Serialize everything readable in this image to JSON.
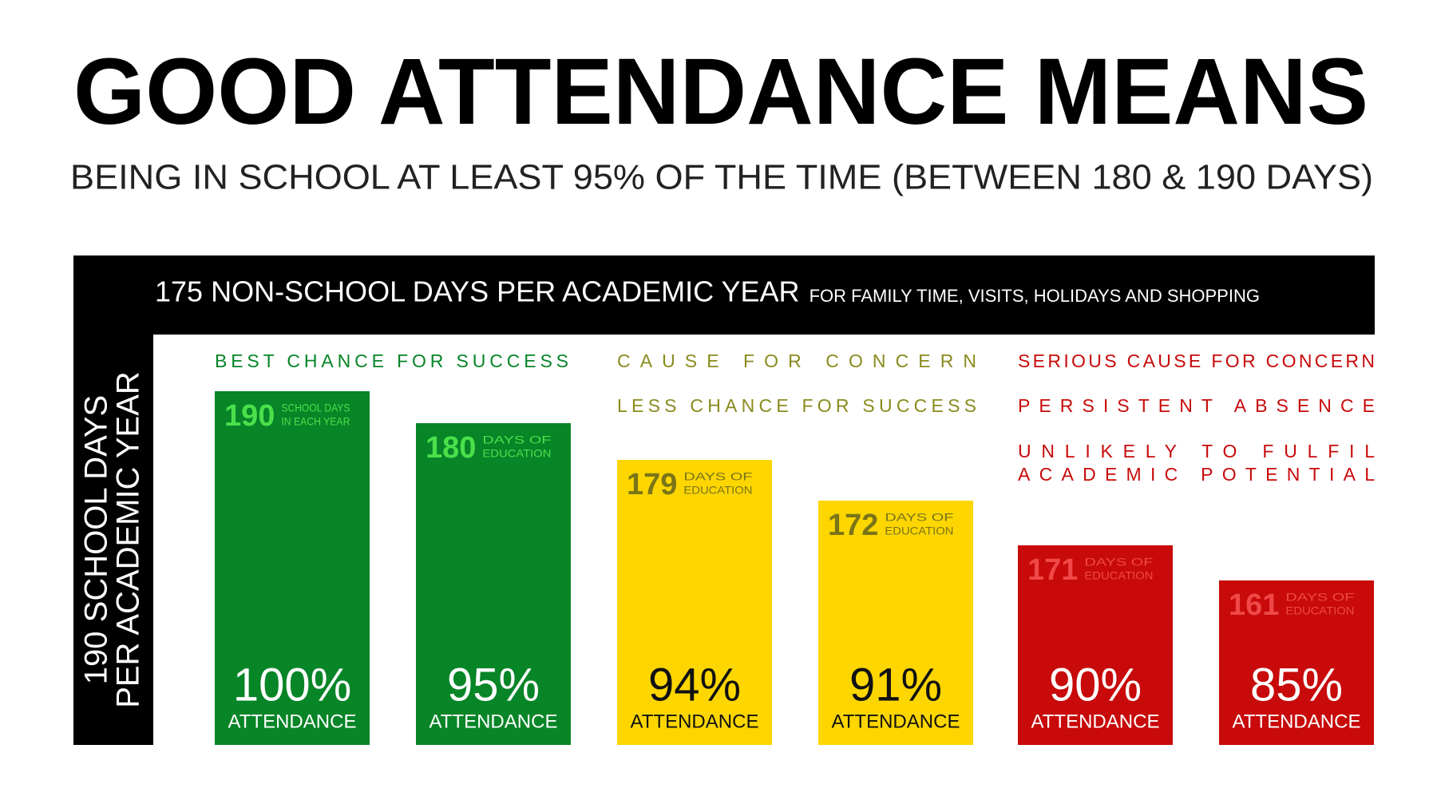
{
  "header": {
    "title": "GOOD ATTENDANCE MEANS",
    "subtitle": "BEING IN SCHOOL AT LEAST 95% OF THE TIME (BETWEEN 180 & 190 DAYS)"
  },
  "frame": {
    "top_main": "175 NON-SCHOOL DAYS PER ACADEMIC YEAR",
    "top_note": "FOR FAMILY TIME, VISITS, HOLIDAYS AND SHOPPING",
    "side": [
      "190 SCHOOL DAYS",
      "PER ACADEMIC YEAR"
    ]
  },
  "groups": [
    {
      "labels": [
        "BEST CHANCE FOR SUCCESS"
      ],
      "color": "#078527",
      "label_color": "#078527",
      "days_color": "#4be04b",
      "percent_color": "#ffffff",
      "bars": [
        {
          "days": 190,
          "note": [
            "SCHOOL DAYS",
            "IN EACH YEAR"
          ],
          "percent": "100%",
          "caption": "ATTENDANCE"
        },
        {
          "days": 180,
          "note": [
            "DAYS OF",
            "EDUCATION"
          ],
          "percent": "95%",
          "caption": "ATTENDANCE"
        }
      ]
    },
    {
      "labels": [
        "CAUSE FOR CONCERN",
        "LESS CHANCE FOR SUCCESS"
      ],
      "color": "#fdd600",
      "label_color": "#8a8a1e",
      "days_color": "#7a7418",
      "percent_color": "#111111",
      "bars": [
        {
          "days": 179,
          "note": [
            "DAYS OF",
            "EDUCATION"
          ],
          "percent": "94%",
          "caption": "ATTENDANCE"
        },
        {
          "days": 172,
          "note": [
            "DAYS OF",
            "EDUCATION"
          ],
          "percent": "91%",
          "caption": "ATTENDANCE"
        }
      ]
    },
    {
      "labels": [
        "SERIOUS CAUSE FOR CONCERN",
        "PERSISTENT ABSENCE",
        "UNLIKELY TO FULFIL",
        "ACADEMIC POTENTIAL"
      ],
      "color": "#c80a0a",
      "label_color": "#c80a0a",
      "days_color": "#f04848",
      "percent_color": "#ffffff",
      "bars": [
        {
          "days": 171,
          "note": [
            "DAYS OF",
            "EDUCATION"
          ],
          "percent": "90%",
          "caption": "ATTENDANCE"
        },
        {
          "days": 161,
          "note": [
            "DAYS OF",
            "EDUCATION"
          ],
          "percent": "85%",
          "caption": "ATTENDANCE"
        }
      ]
    }
  ]
}
